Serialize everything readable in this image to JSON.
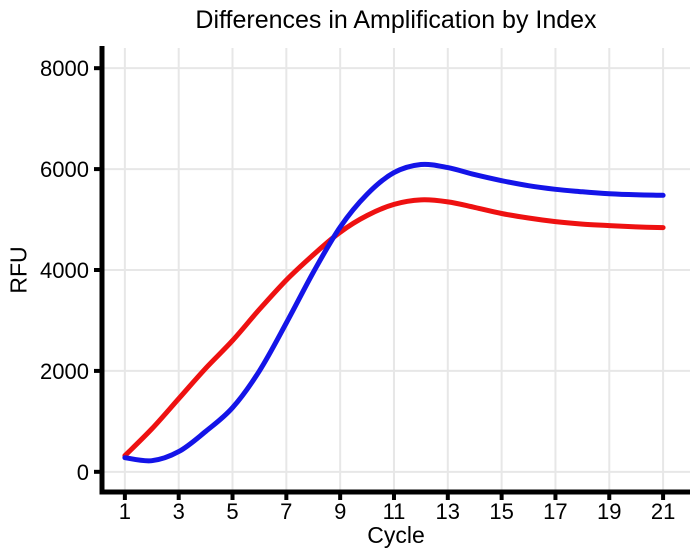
{
  "chart_data": {
    "type": "line",
    "title": "Differences in Amplification by Index",
    "xlabel": "Cycle",
    "ylabel": "RFU",
    "x": [
      1,
      2,
      3,
      4,
      5,
      6,
      7,
      8,
      9,
      10,
      11,
      12,
      13,
      14,
      15,
      16,
      17,
      18,
      19,
      20,
      21
    ],
    "series": [
      {
        "name": "red-curve",
        "color": "#ee1111",
        "values": [
          320,
          850,
          1450,
          2050,
          2600,
          3220,
          3800,
          4300,
          4750,
          5080,
          5300,
          5390,
          5350,
          5240,
          5120,
          5030,
          4960,
          4910,
          4880,
          4855,
          4840
        ]
      },
      {
        "name": "blue-curve",
        "color": "#1414e8",
        "values": [
          280,
          220,
          400,
          800,
          1270,
          2000,
          2950,
          3950,
          4850,
          5500,
          5930,
          6090,
          6030,
          5890,
          5770,
          5670,
          5600,
          5550,
          5510,
          5490,
          5480
        ]
      }
    ],
    "xlim": [
      0.15,
      22
    ],
    "ylim": [
      -400,
      8400
    ],
    "x_ticks": [
      1,
      3,
      5,
      7,
      9,
      11,
      13,
      15,
      17,
      19,
      21
    ],
    "y_ticks": [
      0,
      2000,
      4000,
      6000,
      8000
    ],
    "grid": true,
    "legend": "none"
  },
  "style": {
    "grid_color": "#e7e7e7",
    "axis_color": "#000000",
    "text_color": "#000000",
    "background": "#ffffff",
    "line_width": 5
  }
}
